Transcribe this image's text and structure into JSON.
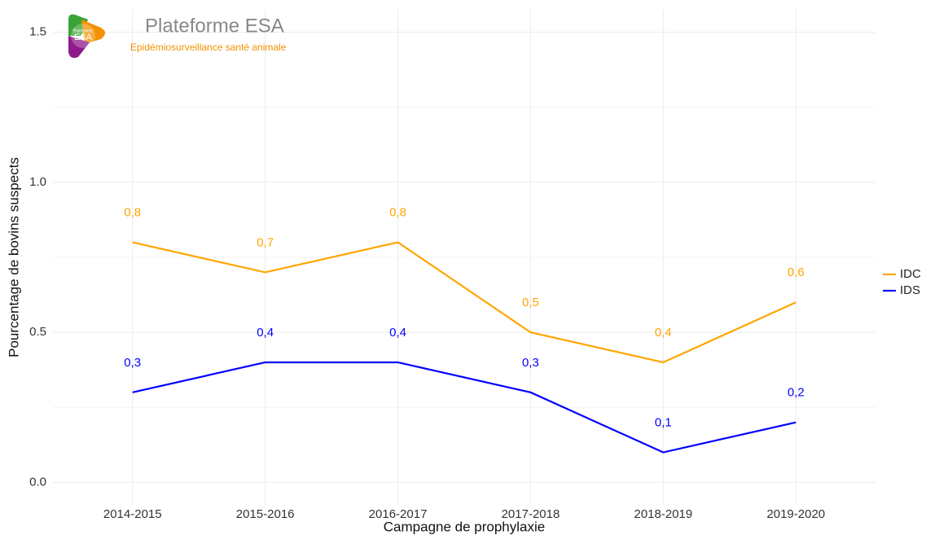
{
  "chart_data": {
    "type": "line",
    "logo": {
      "title": "Plateforme ESA",
      "subtitle": "Epidémiosurveillance santé animale",
      "badge_top": "Plateforme",
      "badge": "ESA"
    },
    "x_label": "Campagne de prophylaxie",
    "y_label": "Pourcentage de bovins suspects",
    "categories": [
      "2014-2015",
      "2015-2016",
      "2016-2017",
      "2017-2018",
      "2018-2019",
      "2019-2020"
    ],
    "series": [
      {
        "name": "IDC",
        "color": "#FFA500",
        "values": [
          0.8,
          0.7,
          0.8,
          0.5,
          0.4,
          0.6
        ],
        "value_labels": [
          "0,8",
          "0,7",
          "0,8",
          "0,5",
          "0,4",
          "0,6"
        ]
      },
      {
        "name": "IDS",
        "color": "#0000FF",
        "values": [
          0.3,
          0.4,
          0.4,
          0.3,
          0.1,
          0.2
        ],
        "value_labels": [
          "0,3",
          "0,4",
          "0,4",
          "0,3",
          "0,1",
          "0,2"
        ]
      }
    ],
    "ylim": [
      -0.075,
      1.575
    ],
    "yticks": [
      {
        "value": 0,
        "label": "0.0"
      },
      0.5,
      {
        "value": 1,
        "label": "1.0"
      },
      1.5
    ],
    "y_minor_gridlines": [
      0.25,
      0.75,
      1.25
    ],
    "grid": true,
    "legend": "right"
  }
}
